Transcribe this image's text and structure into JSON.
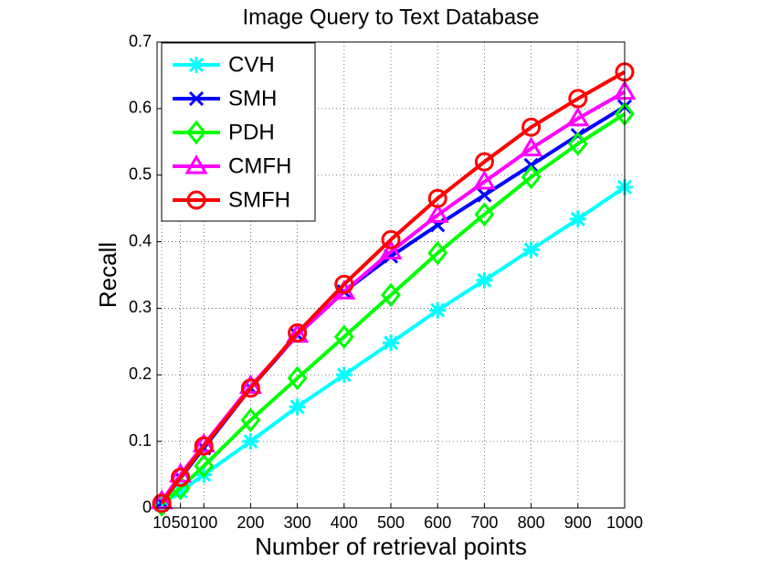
{
  "chart_data": {
    "type": "line",
    "title": "Image Query to Text Database",
    "x_label": "Number of retrieval points",
    "y_label": "Recall",
    "x": [
      10,
      50,
      100,
      200,
      300,
      400,
      500,
      600,
      700,
      800,
      900,
      1000
    ],
    "xlim": [
      0,
      1000
    ],
    "ylim": [
      0,
      0.7
    ],
    "xticks": [
      10,
      50,
      100,
      200,
      300,
      400,
      500,
      600,
      700,
      800,
      900,
      1000
    ],
    "yticks": [
      0,
      0.1,
      0.2,
      0.3,
      0.4,
      0.5,
      0.6,
      0.7
    ],
    "grid": true,
    "legend_position": "upper-left",
    "series": [
      {
        "name": "CVH",
        "color": "#00ffff",
        "marker": "asterisk",
        "values": [
          0.005,
          0.025,
          0.05,
          0.1,
          0.152,
          0.2,
          0.248,
          0.297,
          0.342,
          0.388,
          0.434,
          0.482
        ]
      },
      {
        "name": "SMH",
        "color": "#0000ff",
        "marker": "x",
        "values": [
          0.008,
          0.045,
          0.09,
          0.18,
          0.26,
          0.325,
          0.378,
          0.425,
          0.47,
          0.515,
          0.56,
          0.603
        ]
      },
      {
        "name": "PDH",
        "color": "#00ff00",
        "marker": "diamond",
        "values": [
          0.005,
          0.03,
          0.063,
          0.132,
          0.195,
          0.257,
          0.32,
          0.383,
          0.441,
          0.497,
          0.547,
          0.592
        ]
      },
      {
        "name": "CMFH",
        "color": "#ff00ff",
        "marker": "triangle",
        "values": [
          0.01,
          0.05,
          0.095,
          0.183,
          0.26,
          0.325,
          0.385,
          0.44,
          0.49,
          0.54,
          0.585,
          0.625
        ]
      },
      {
        "name": "SMFH",
        "color": "#ff0000",
        "marker": "circle",
        "values": [
          0.007,
          0.046,
          0.093,
          0.18,
          0.263,
          0.336,
          0.403,
          0.465,
          0.52,
          0.572,
          0.615,
          0.655
        ]
      }
    ]
  }
}
